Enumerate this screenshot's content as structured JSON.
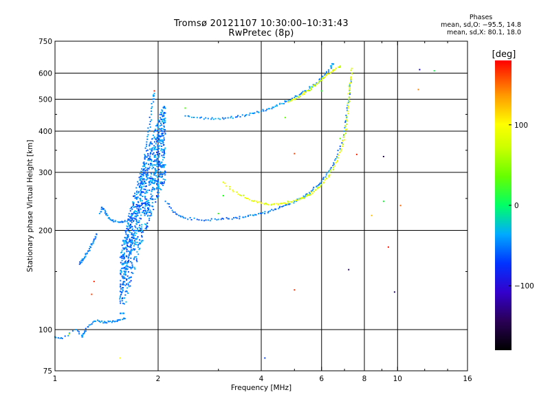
{
  "title": {
    "line1": "Tromsø 20121107 10:30:00–10:31:43",
    "line2": "RwPretec (8p)"
  },
  "phase_stats": {
    "title": "Phases",
    "o_line": "mean, sd,O: −95.5, 14.8",
    "x_line": "mean, sd,X:  80.1, 18.0"
  },
  "colorbar": {
    "unit": "[deg]",
    "ticks": [
      {
        "value": 100,
        "label": "100"
      },
      {
        "value": 0,
        "label": "0"
      },
      {
        "value": -100,
        "label": "−100"
      }
    ],
    "range": [
      -180,
      180
    ]
  },
  "chart_data": {
    "type": "scatter",
    "xlabel": "Frequency [MHz]",
    "ylabel": "Stationary phase Virtual Height [km]",
    "x_scale": "log",
    "y_scale": "log",
    "xlim": [
      1,
      16
    ],
    "ylim": [
      75,
      750
    ],
    "x_ticks": [
      {
        "value": 1,
        "label": "1"
      },
      {
        "value": 2,
        "label": "2"
      },
      {
        "value": 4,
        "label": "4"
      },
      {
        "value": 6,
        "label": "6"
      },
      {
        "value": 8,
        "label": "8"
      },
      {
        "value": 10,
        "label": "10"
      },
      {
        "value": 16,
        "label": "16"
      }
    ],
    "y_ticks": [
      {
        "value": 75,
        "label": "75"
      },
      {
        "value": 100,
        "label": "100"
      },
      {
        "value": 200,
        "label": "200"
      },
      {
        "value": 300,
        "label": "300"
      },
      {
        "value": 400,
        "label": "400"
      },
      {
        "value": 500,
        "label": "500"
      },
      {
        "value": 600,
        "label": "600"
      },
      {
        "value": 750,
        "label": "750"
      }
    ],
    "grid_x": [
      2,
      4,
      6,
      8,
      10
    ],
    "grid_y": [
      100,
      200,
      300,
      400,
      500,
      600
    ],
    "color_scale": "phase [deg], rainbow from black (−180) through blue (−100), cyan, green (0), yellow (100) to red (180)",
    "traces": [
      {
        "name": "",
        "phase": -100,
        "points": [
          [
            1.0,
            95
          ],
          [
            1.05,
            94
          ],
          [
            1.15,
            100
          ],
          [
            1.2,
            95
          ],
          [
            1.22,
            98
          ],
          [
            1.25,
            102
          ],
          [
            1.3,
            106
          ],
          [
            1.35,
            106
          ],
          [
            1.4,
            105
          ],
          [
            1.45,
            106
          ],
          [
            1.5,
            106
          ],
          [
            1.55,
            107
          ],
          [
            1.6,
            108
          ]
        ]
      },
      {
        "name": "",
        "phase": -100,
        "points": [
          [
            1.18,
            158
          ],
          [
            1.2,
            162
          ],
          [
            1.22,
            165
          ],
          [
            1.24,
            170
          ],
          [
            1.26,
            176
          ],
          [
            1.28,
            182
          ],
          [
            1.3,
            188
          ],
          [
            1.32,
            195
          ]
        ]
      },
      {
        "name": "",
        "phase": -100,
        "points": [
          [
            1.35,
            225
          ],
          [
            1.37,
            235
          ],
          [
            1.4,
            230
          ],
          [
            1.42,
            222
          ],
          [
            1.45,
            216
          ],
          [
            1.5,
            213
          ],
          [
            1.55,
            212
          ],
          [
            1.6,
            214
          ],
          [
            1.65,
            215
          ],
          [
            1.7,
            218
          ]
        ]
      },
      {
        "name": "",
        "phase": -100,
        "points": [
          [
            1.55,
            122
          ],
          [
            1.57,
            130
          ],
          [
            1.59,
            140
          ],
          [
            1.61,
            150
          ],
          [
            1.63,
            160
          ],
          [
            1.65,
            170
          ],
          [
            1.67,
            180
          ],
          [
            1.69,
            190
          ],
          [
            1.71,
            200
          ],
          [
            1.73,
            215
          ],
          [
            1.75,
            230
          ],
          [
            1.77,
            250
          ],
          [
            1.79,
            270
          ],
          [
            1.81,
            300
          ],
          [
            1.83,
            330
          ],
          [
            1.85,
            360
          ],
          [
            1.87,
            390
          ],
          [
            1.89,
            420
          ],
          [
            1.91,
            460
          ],
          [
            1.93,
            500
          ],
          [
            1.95,
            520
          ]
        ]
      },
      {
        "name": "",
        "phase": -100,
        "points": [
          [
            1.9,
            250
          ],
          [
            1.93,
            270
          ],
          [
            1.96,
            300
          ],
          [
            1.99,
            330
          ],
          [
            2.02,
            370
          ],
          [
            2.05,
            400
          ]
        ]
      },
      {
        "name": "",
        "phase": -100,
        "points": [
          [
            2.1,
            245
          ],
          [
            2.2,
            230
          ],
          [
            2.3,
            222
          ],
          [
            2.4,
            218
          ],
          [
            2.6,
            216
          ],
          [
            2.8,
            215
          ],
          [
            3.0,
            216
          ],
          [
            3.2,
            217
          ],
          [
            3.4,
            218
          ],
          [
            3.6,
            220
          ],
          [
            3.8,
            222
          ],
          [
            4.0,
            225
          ],
          [
            4.2,
            228
          ],
          [
            4.4,
            232
          ],
          [
            4.6,
            236
          ],
          [
            4.8,
            240
          ],
          [
            5.0,
            245
          ],
          [
            5.2,
            250
          ],
          [
            5.4,
            256
          ],
          [
            5.6,
            263
          ],
          [
            5.8,
            272
          ],
          [
            6.0,
            282
          ],
          [
            6.2,
            295
          ],
          [
            6.4,
            310
          ],
          [
            6.6,
            330
          ],
          [
            6.8,
            360
          ],
          [
            7.0,
            400
          ],
          [
            7.1,
            440
          ],
          [
            7.2,
            490
          ],
          [
            7.25,
            540
          ],
          [
            7.3,
            580
          ]
        ]
      },
      {
        "name": "",
        "phase": -95,
        "points": [
          [
            2.4,
            445
          ],
          [
            2.6,
            440
          ],
          [
            2.8,
            437
          ],
          [
            3.0,
            437
          ],
          [
            3.2,
            439
          ],
          [
            3.4,
            442
          ],
          [
            3.6,
            447
          ],
          [
            3.8,
            453
          ],
          [
            4.0,
            460
          ],
          [
            4.2,
            468
          ],
          [
            4.4,
            476
          ],
          [
            4.6,
            485
          ],
          [
            4.8,
            495
          ],
          [
            5.0,
            506
          ],
          [
            5.2,
            518
          ],
          [
            5.4,
            530
          ],
          [
            5.6,
            545
          ],
          [
            5.8,
            560
          ],
          [
            6.0,
            580
          ],
          [
            6.2,
            600
          ],
          [
            6.4,
            625
          ],
          [
            6.5,
            640
          ]
        ]
      },
      {
        "name": "",
        "phase": 90,
        "points": [
          [
            3.1,
            280
          ],
          [
            3.3,
            265
          ],
          [
            3.5,
            255
          ],
          [
            3.7,
            248
          ],
          [
            3.9,
            243
          ],
          [
            4.1,
            240
          ],
          [
            4.3,
            240
          ],
          [
            4.5,
            241
          ],
          [
            4.7,
            242
          ],
          [
            4.9,
            244
          ],
          [
            5.1,
            247
          ],
          [
            5.3,
            251
          ],
          [
            5.5,
            256
          ],
          [
            5.7,
            262
          ],
          [
            5.9,
            270
          ],
          [
            6.1,
            280
          ],
          [
            6.3,
            293
          ],
          [
            6.5,
            310
          ],
          [
            6.7,
            332
          ],
          [
            6.9,
            360
          ],
          [
            7.0,
            390
          ],
          [
            7.1,
            420
          ],
          [
            7.15,
            460
          ],
          [
            7.2,
            500
          ],
          [
            7.25,
            540
          ],
          [
            7.3,
            580
          ],
          [
            7.35,
            620
          ]
        ]
      },
      {
        "name": "",
        "phase": 90,
        "points": [
          [
            4.8,
            490
          ],
          [
            5.0,
            500
          ],
          [
            5.2,
            510
          ],
          [
            5.4,
            525
          ],
          [
            5.6,
            540
          ],
          [
            5.8,
            555
          ],
          [
            6.0,
            570
          ],
          [
            6.2,
            590
          ],
          [
            6.4,
            605
          ],
          [
            6.6,
            620
          ],
          [
            6.8,
            630
          ]
        ]
      }
    ],
    "scattered_points": [
      {
        "x": 1.28,
        "y": 128,
        "phase": 160
      },
      {
        "x": 1.3,
        "y": 140,
        "phase": 170
      },
      {
        "x": 1.95,
        "y": 530,
        "phase": 170
      },
      {
        "x": 2.4,
        "y": 470,
        "phase": 40
      },
      {
        "x": 3.1,
        "y": 255,
        "phase": 20
      },
      {
        "x": 3.0,
        "y": 225,
        "phase": 30
      },
      {
        "x": 4.1,
        "y": 82,
        "phase": -120
      },
      {
        "x": 4.7,
        "y": 440,
        "phase": 50
      },
      {
        "x": 5.0,
        "y": 342,
        "phase": 160
      },
      {
        "x": 5.0,
        "y": 132,
        "phase": 165
      },
      {
        "x": 6.0,
        "y": 530,
        "phase": 20
      },
      {
        "x": 6.8,
        "y": 380,
        "phase": 50
      },
      {
        "x": 7.2,
        "y": 152,
        "phase": -170
      },
      {
        "x": 7.6,
        "y": 340,
        "phase": 170
      },
      {
        "x": 8.4,
        "y": 222,
        "phase": 120
      },
      {
        "x": 9.1,
        "y": 335,
        "phase": -170
      },
      {
        "x": 9.1,
        "y": 245,
        "phase": 10
      },
      {
        "x": 9.4,
        "y": 178,
        "phase": 175
      },
      {
        "x": 9.8,
        "y": 130,
        "phase": -160
      },
      {
        "x": 10.2,
        "y": 238,
        "phase": 150
      },
      {
        "x": 11.5,
        "y": 535,
        "phase": 140
      },
      {
        "x": 11.6,
        "y": 615,
        "phase": -150
      },
      {
        "x": 12.8,
        "y": 610,
        "phase": 0
      },
      {
        "x": 1.55,
        "y": 82,
        "phase": 100
      },
      {
        "x": 1.1,
        "y": 97,
        "phase": 80
      }
    ]
  }
}
